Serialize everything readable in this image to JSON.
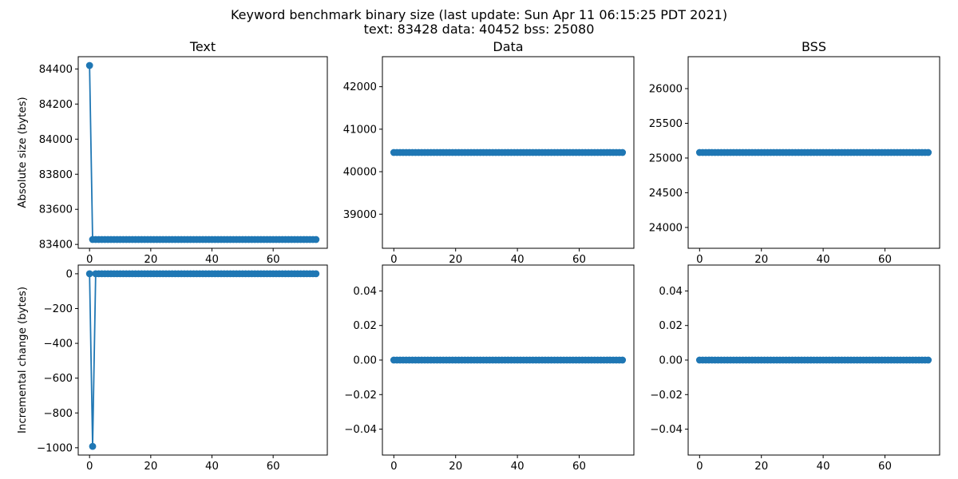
{
  "figure": {
    "suptitle_line1": "Keyword benchmark binary size (last update: Sun Apr 11 06:15:25 PDT 2021)",
    "suptitle_line2": "text: 83428 data: 40452 bss: 25080",
    "series_color": "#1f77b4"
  },
  "chart_data": [
    {
      "type": "line",
      "title": "Text",
      "ylabel": "Absolute size (bytes)",
      "x": {
        "start": 0,
        "end": 74
      },
      "values": {
        "first": 84420,
        "rest": 83428
      },
      "xlim": [
        -3.7,
        77.7
      ],
      "ylim": [
        83378,
        84470
      ],
      "xticks": [
        0,
        20,
        40,
        60
      ],
      "yticks": [
        83400,
        83600,
        83800,
        84000,
        84200,
        84400
      ],
      "grid": false
    },
    {
      "type": "line",
      "title": "Data",
      "ylabel": "",
      "x": {
        "start": 0,
        "end": 74
      },
      "values": {
        "first": 40452,
        "rest": 40452
      },
      "xlim": [
        -3.7,
        77.7
      ],
      "ylim": [
        38197,
        42707
      ],
      "xticks": [
        0,
        20,
        40,
        60
      ],
      "yticks": [
        39000,
        40000,
        41000,
        42000
      ],
      "grid": false
    },
    {
      "type": "line",
      "title": "BSS",
      "ylabel": "",
      "x": {
        "start": 0,
        "end": 74
      },
      "values": {
        "first": 25080,
        "rest": 25080
      },
      "xlim": [
        -3.7,
        77.7
      ],
      "ylim": [
        23700,
        26460
      ],
      "xticks": [
        0,
        20,
        40,
        60
      ],
      "yticks": [
        24000,
        24500,
        25000,
        25500,
        26000
      ],
      "grid": false
    },
    {
      "type": "line",
      "title": "",
      "ylabel": "Incremental change (bytes)",
      "x": {
        "start": 0,
        "end": 74
      },
      "values": {
        "points": [
          [
            0,
            0
          ],
          [
            1,
            -992
          ]
        ],
        "rest": 0
      },
      "xlim": [
        -3.7,
        77.7
      ],
      "ylim": [
        -1042,
        50
      ],
      "xticks": [
        0,
        20,
        40,
        60
      ],
      "yticks": [
        -1000,
        -800,
        -600,
        -400,
        -200,
        0
      ],
      "grid": false
    },
    {
      "type": "line",
      "title": "",
      "ylabel": "",
      "x": {
        "start": 0,
        "end": 74
      },
      "values": {
        "first": 0,
        "rest": 0
      },
      "xlim": [
        -3.7,
        77.7
      ],
      "ylim": [
        -0.055,
        0.055
      ],
      "xticks": [
        0,
        20,
        40,
        60
      ],
      "yticks": [
        -0.04,
        -0.02,
        0.0,
        0.02,
        0.04
      ],
      "ytick_decimals": 2,
      "grid": false
    },
    {
      "type": "line",
      "title": "",
      "ylabel": "",
      "x": {
        "start": 0,
        "end": 74
      },
      "values": {
        "first": 0,
        "rest": 0
      },
      "xlim": [
        -3.7,
        77.7
      ],
      "ylim": [
        -0.055,
        0.055
      ],
      "xticks": [
        0,
        20,
        40,
        60
      ],
      "yticks": [
        -0.04,
        -0.02,
        0.0,
        0.02,
        0.04
      ],
      "ytick_decimals": 2,
      "grid": false
    }
  ]
}
